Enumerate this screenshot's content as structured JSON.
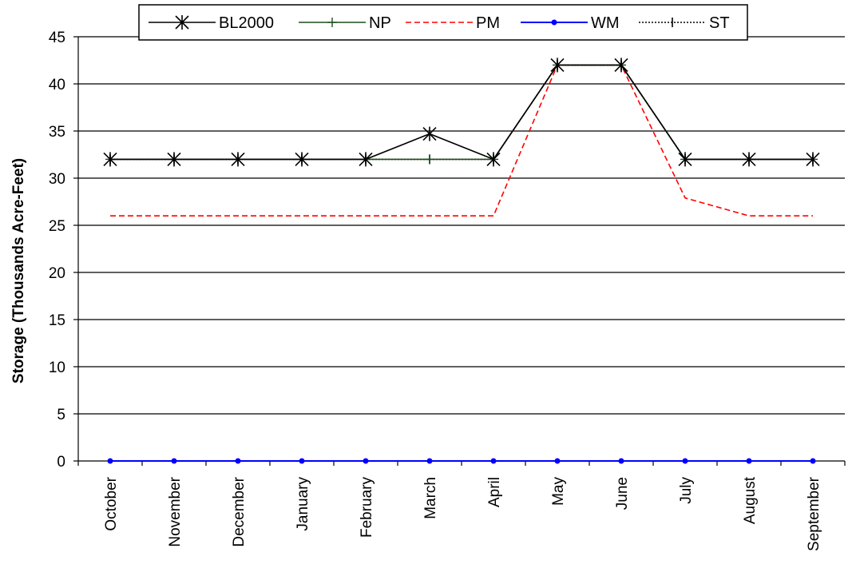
{
  "chart_data": {
    "type": "line",
    "title": "",
    "xlabel": "",
    "ylabel": "Storage (Thousands Acre-Feet)",
    "ylim": [
      0,
      45
    ],
    "yticks": [
      0,
      5,
      10,
      15,
      20,
      25,
      30,
      35,
      40,
      45
    ],
    "grid": "horizontal",
    "legend_position": "top",
    "categories": [
      "October",
      "November",
      "December",
      "January",
      "February",
      "March",
      "April",
      "May",
      "June",
      "July",
      "August",
      "September"
    ],
    "series": [
      {
        "name": "BL2000",
        "color": "#000000",
        "line_style": "solid",
        "marker": "asterisk",
        "values": [
          32,
          32,
          32,
          32,
          32,
          34.7,
          32,
          42,
          42,
          32,
          32,
          32
        ]
      },
      {
        "name": "NP",
        "color": "#1f4d1f",
        "line_style": "solid",
        "marker": "plus",
        "values": [
          32,
          32,
          32,
          32,
          32,
          32,
          32,
          42,
          42,
          32,
          32,
          32
        ]
      },
      {
        "name": "PM",
        "color": "#ff0000",
        "line_style": "dashed",
        "marker": "none",
        "values": [
          26,
          26,
          26,
          26,
          26,
          26,
          26,
          42,
          42,
          27.9,
          26,
          26
        ]
      },
      {
        "name": "WM",
        "color": "#0000ff",
        "line_style": "solid",
        "marker": "dot",
        "values": [
          0,
          0,
          0,
          0,
          0,
          0,
          0,
          0,
          0,
          0,
          0,
          0
        ]
      },
      {
        "name": "ST",
        "color": "#000000",
        "line_style": "dotted",
        "marker": "vbar",
        "values": [
          32,
          32,
          32,
          32,
          32,
          32,
          32,
          42,
          42,
          32,
          32,
          32
        ]
      }
    ]
  }
}
